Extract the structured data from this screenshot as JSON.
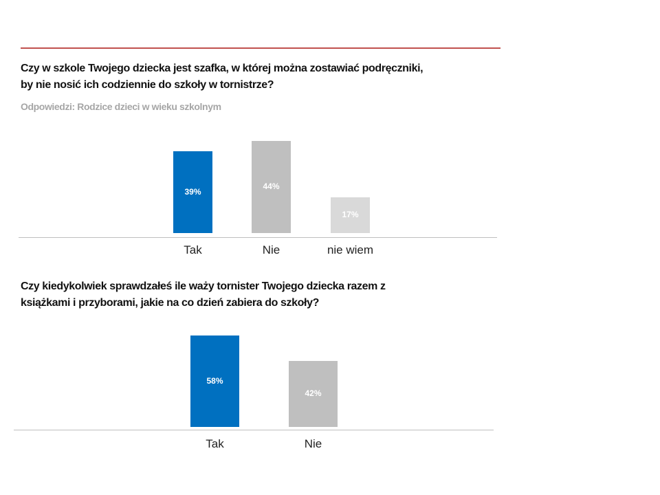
{
  "chart_data": [
    {
      "type": "bar",
      "title": "Czy w szkole Twojego dziecka jest szafka, w której można zostawiać podręczniki, by nie nosić ich codziennie do szkoły w tornistrze?",
      "title_lines": [
        "Czy w szkole Twojego dziecka jest szafka, w której można zostawiać podręczniki,",
        "by nie nosić ich codziennie do szkoły w tornistrze?"
      ],
      "subtitle": "Odpowiedzi: Rodzice dzieci w wieku szkolnym",
      "categories": [
        "Tak",
        "Nie",
        "nie wiem"
      ],
      "values": [
        39,
        44,
        17
      ],
      "data_labels": [
        "39%",
        "44%",
        "17%"
      ],
      "colors": [
        "#0070c0",
        "#bfbfbf",
        "#d9d9d9"
      ],
      "xlabel": "",
      "ylabel": "",
      "ylim": [
        0,
        44
      ]
    },
    {
      "type": "bar",
      "title": "Czy kiedykolwiek sprawdzałeś ile waży tornister Twojego dziecka razem z książkami i przyborami,  jakie na co dzień zabiera do szkoły?",
      "title_lines": [
        "Czy kiedykolwiek sprawdzałeś ile waży tornister Twojego dziecka razem z",
        "książkami i przyborami,  jakie na co dzień zabiera do szkoły?"
      ],
      "categories": [
        "Tak",
        "Nie"
      ],
      "values": [
        58,
        42
      ],
      "data_labels": [
        "58%",
        "42%"
      ],
      "colors": [
        "#0070c0",
        "#bfbfbf"
      ],
      "xlabel": "",
      "ylabel": "",
      "ylim": [
        0,
        58
      ]
    }
  ]
}
